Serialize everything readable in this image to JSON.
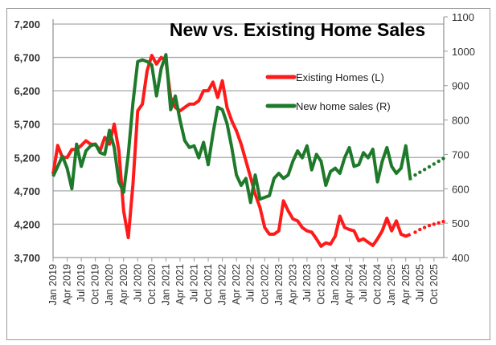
{
  "chart_data": {
    "type": "line",
    "title": "New vs. Existing Home Sales",
    "x_start": "Jan 2019",
    "x_ticks": [
      "Jan 2019",
      "Apr 2019",
      "Jul 2019",
      "Oct 2019",
      "Jan 2020",
      "Apr 2020",
      "Jul 2020",
      "Oct 2020",
      "Jan 2021",
      "Apr 2021",
      "Jul 2021",
      "Oct 2021",
      "Jan 2022",
      "Apr 2022",
      "Jul 2022",
      "Oct 2022",
      "Jan 2023",
      "Apr 2023",
      "Jul 2023",
      "Oct 2023",
      "Jan 2024",
      "Apr 2024",
      "Jul 2024",
      "Oct 2024",
      "Jan 2025",
      "Apr 2025",
      "Jul 2025",
      "Oct 2025"
    ],
    "y_left": {
      "min": 3700,
      "max": 7200,
      "ticks": [
        "3,700",
        "4,200",
        "4,700",
        "5,200",
        "5,700",
        "6,200",
        "6,700",
        "7,200"
      ]
    },
    "y_right": {
      "min": 400,
      "max": 1100,
      "ticks": [
        "400",
        "500",
        "600",
        "700",
        "800",
        "900",
        "1000",
        "1100"
      ]
    },
    "grid": true,
    "legend_position": "top-right",
    "series": [
      {
        "name": "Existing Homes (L)",
        "axis": "left",
        "color": "#ff1a1a",
        "values": [
          4950,
          5380,
          5200,
          5200,
          5320,
          5320,
          5380,
          5450,
          5400,
          5400,
          5300,
          5500,
          5400,
          5700,
          5300,
          4400,
          4000,
          4800,
          5900,
          6000,
          6500,
          6730,
          6600,
          6700,
          6650,
          6100,
          5950,
          5900,
          5950,
          6000,
          6000,
          6050,
          6200,
          6200,
          6330,
          6100,
          6350,
          5950,
          5750,
          5600,
          5400,
          5150,
          4900,
          4650,
          4450,
          4150,
          4050,
          4050,
          4100,
          4550,
          4400,
          4280,
          4250,
          4150,
          4100,
          4080,
          3980,
          3870,
          3920,
          3900,
          4020,
          4320,
          4150,
          4120,
          4100,
          3950,
          3980,
          3930,
          3880,
          3980,
          4100,
          4290,
          4100,
          4250,
          4050,
          4020,
          4050
        ],
        "projection": [
          4080,
          4120,
          4150,
          4180,
          4200,
          4220,
          4240
        ]
      },
      {
        "name": "New home sales (R)",
        "axis": "right",
        "color": "#1e7a2a",
        "values": [
          636,
          665,
          695,
          660,
          600,
          730,
          665,
          710,
          725,
          730,
          705,
          700,
          770,
          720,
          620,
          590,
          700,
          850,
          970,
          975,
          970,
          960,
          870,
          950,
          990,
          830,
          870,
          800,
          740,
          720,
          725,
          690,
          735,
          670,
          760,
          837,
          830,
          790,
          720,
          640,
          610,
          630,
          560,
          640,
          570,
          575,
          580,
          630,
          645,
          630,
          640,
          680,
          710,
          690,
          725,
          655,
          700,
          680,
          610,
          650,
          660,
          645,
          690,
          720,
          665,
          670,
          705,
          690,
          715,
          620,
          680,
          720,
          665,
          645,
          660,
          725,
          625
        ],
        "projection": [
          640,
          648,
          656,
          664,
          672,
          680,
          688
        ]
      }
    ]
  }
}
